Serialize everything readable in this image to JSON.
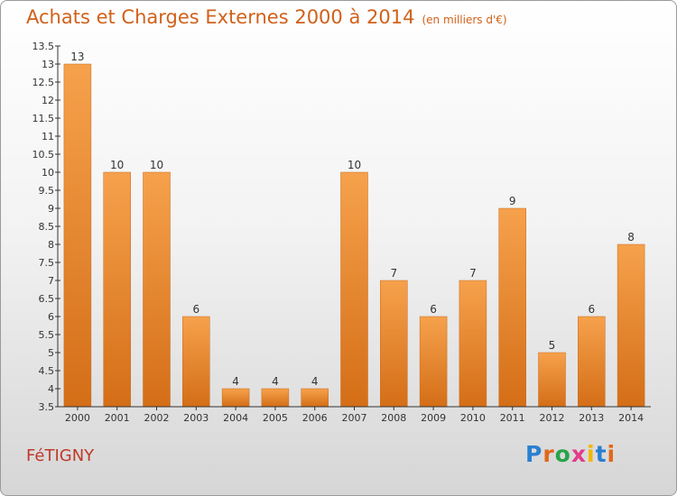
{
  "header": {
    "title": "Achats et Charges Externes 2000 à 2014",
    "unit": "(en milliers d'€)"
  },
  "footer": {
    "commune": "FéTIGNY",
    "brand": "Proxiti"
  },
  "colors": {
    "bar_light": "#f6a14c",
    "bar_dark": "#d46e17",
    "title": "#d0611a",
    "commune": "#c0392b"
  },
  "chart_data": {
    "type": "bar",
    "title": "Achats et Charges Externes 2000 à 2014",
    "subtitle": "(en milliers d'€)",
    "categories": [
      "2000",
      "2001",
      "2002",
      "2003",
      "2004",
      "2005",
      "2006",
      "2007",
      "2008",
      "2009",
      "2010",
      "2011",
      "2012",
      "2013",
      "2014"
    ],
    "values": [
      13,
      10,
      10,
      6,
      4,
      4,
      4,
      10,
      7,
      6,
      7,
      9,
      5,
      6,
      8
    ],
    "ylim": [
      3.5,
      13.5
    ],
    "yticks": [
      "3.5",
      "4",
      "4.5",
      "5",
      "5.5",
      "6",
      "6.5",
      "7",
      "7.5",
      "8",
      "8.5",
      "9",
      "9.5",
      "10",
      "10.5",
      "11",
      "11.5",
      "12",
      "12.5",
      "13",
      "13.5"
    ],
    "xlabel": "",
    "ylabel": "",
    "grid": false,
    "data_labels": true
  }
}
